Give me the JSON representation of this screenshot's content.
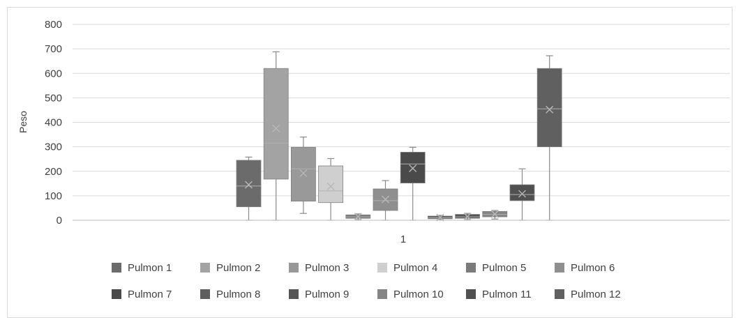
{
  "chart_data": {
    "type": "boxplot",
    "title": "",
    "xlabel": "",
    "ylabel": "Peso",
    "ylim": [
      0,
      800
    ],
    "y_ticks": [
      0,
      100,
      200,
      300,
      400,
      500,
      600,
      700,
      800
    ],
    "x_category": "1",
    "grid": "horizontal",
    "legend_placement": "bottom",
    "series": [
      {
        "name": "Pulmon 1",
        "color": "#6b6b6b",
        "min": 0,
        "q1": 55,
        "median": 140,
        "q3": 245,
        "max": 258,
        "mean": 145
      },
      {
        "name": "Pulmon 2",
        "color": "#a3a3a3",
        "min": 0,
        "q1": 168,
        "median": 315,
        "q3": 620,
        "max": 688,
        "mean": 375
      },
      {
        "name": "Pulmon 3",
        "color": "#999999",
        "min": 28,
        "q1": 78,
        "median": 210,
        "q3": 298,
        "max": 340,
        "mean": 192
      },
      {
        "name": "Pulmon 4",
        "color": "#cfcfcf",
        "min": 0,
        "q1": 72,
        "median": 120,
        "q3": 222,
        "max": 252,
        "mean": 138
      },
      {
        "name": "Pulmon 5",
        "color": "#7a7a7a",
        "min": 2,
        "q1": 8,
        "median": 14,
        "q3": 22,
        "max": 26,
        "mean": 15
      },
      {
        "name": "Pulmon 6",
        "color": "#8f8f8f",
        "min": 0,
        "q1": 40,
        "median": 80,
        "q3": 128,
        "max": 162,
        "mean": 85
      },
      {
        "name": "Pulmon 7",
        "color": "#4a4a4a",
        "min": 0,
        "q1": 152,
        "median": 230,
        "q3": 278,
        "max": 298,
        "mean": 212
      },
      {
        "name": "Pulmon 8",
        "color": "#5e5e5e",
        "min": 2,
        "q1": 6,
        "median": 10,
        "q3": 17,
        "max": 20,
        "mean": 11
      },
      {
        "name": "Pulmon 9",
        "color": "#555555",
        "min": 2,
        "q1": 8,
        "median": 14,
        "q3": 24,
        "max": 28,
        "mean": 15
      },
      {
        "name": "Pulmon 10",
        "color": "#858585",
        "min": 5,
        "q1": 14,
        "median": 24,
        "q3": 36,
        "max": 40,
        "mean": 25
      },
      {
        "name": "Pulmon 11",
        "color": "#505050",
        "min": 0,
        "q1": 80,
        "median": 105,
        "q3": 145,
        "max": 210,
        "mean": 108
      },
      {
        "name": "Pulmon 12",
        "color": "#606060",
        "min": 0,
        "q1": 300,
        "median": 455,
        "q3": 620,
        "max": 672,
        "mean": 452
      }
    ]
  }
}
